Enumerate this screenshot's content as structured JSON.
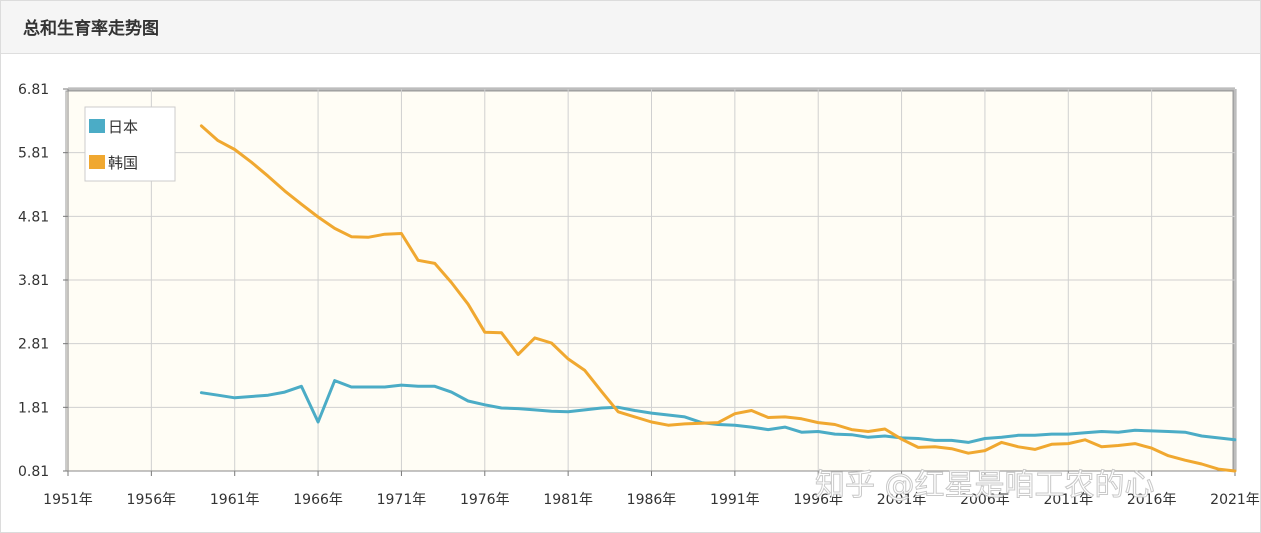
{
  "page": {
    "title": "总和生育率走势图"
  },
  "watermark": "知乎 @红星是咱工农的心",
  "colors": {
    "japan": "#4bacc6",
    "korea": "#f0a830",
    "plot_bg": "#fffdf5",
    "grid": "#d0d0d0"
  },
  "chart_data": {
    "type": "line",
    "title": "总和生育率走势图",
    "xlabel": "",
    "ylabel": "",
    "xlim": [
      1951,
      2021
    ],
    "ylim": [
      0.81,
      6.81
    ],
    "x_ticks": [
      1951,
      1956,
      1961,
      1966,
      1971,
      1976,
      1981,
      1986,
      1991,
      1996,
      2001,
      2006,
      2011,
      2016,
      2021
    ],
    "x_tick_labels": [
      "1951年",
      "1956年",
      "1961年",
      "1966年",
      "1971年",
      "1976年",
      "1981年",
      "1986年",
      "1991年",
      "1996年",
      "2001年",
      "2006年",
      "2011年",
      "2016年",
      "2021年"
    ],
    "y_ticks": [
      0.81,
      1.81,
      2.81,
      3.81,
      4.81,
      5.81,
      6.81
    ],
    "y_tick_labels": [
      "0.81",
      "1.81",
      "2.81",
      "3.81",
      "4.81",
      "5.81",
      "6.81"
    ],
    "grid": true,
    "legend_position": "top-left",
    "series": [
      {
        "name": "日本",
        "color": "#4bacc6",
        "x": [
          1959,
          1960,
          1961,
          1962,
          1963,
          1964,
          1965,
          1966,
          1967,
          1968,
          1969,
          1970,
          1971,
          1972,
          1973,
          1974,
          1975,
          1976,
          1977,
          1978,
          1979,
          1980,
          1981,
          1982,
          1983,
          1984,
          1985,
          1986,
          1987,
          1988,
          1989,
          1990,
          1991,
          1992,
          1993,
          1994,
          1995,
          1996,
          1997,
          1998,
          1999,
          2000,
          2001,
          2002,
          2003,
          2004,
          2005,
          2006,
          2007,
          2008,
          2009,
          2010,
          2011,
          2012,
          2013,
          2014,
          2015,
          2016,
          2017,
          2018,
          2019,
          2020,
          2021
        ],
        "values": [
          2.04,
          2.0,
          1.96,
          1.98,
          2.0,
          2.05,
          2.14,
          1.58,
          2.23,
          2.13,
          2.13,
          2.13,
          2.16,
          2.14,
          2.14,
          2.05,
          1.91,
          1.85,
          1.8,
          1.79,
          1.77,
          1.75,
          1.74,
          1.77,
          1.8,
          1.81,
          1.76,
          1.72,
          1.69,
          1.66,
          1.57,
          1.54,
          1.53,
          1.5,
          1.46,
          1.5,
          1.42,
          1.43,
          1.39,
          1.38,
          1.34,
          1.36,
          1.33,
          1.32,
          1.29,
          1.29,
          1.26,
          1.32,
          1.34,
          1.37,
          1.37,
          1.39,
          1.39,
          1.41,
          1.43,
          1.42,
          1.45,
          1.44,
          1.43,
          1.42,
          1.36,
          1.33,
          1.3
        ]
      },
      {
        "name": "韩国",
        "color": "#f0a830",
        "x": [
          1959,
          1960,
          1961,
          1962,
          1963,
          1964,
          1965,
          1966,
          1967,
          1968,
          1969,
          1970,
          1971,
          1972,
          1973,
          1974,
          1975,
          1976,
          1977,
          1978,
          1979,
          1980,
          1981,
          1982,
          1983,
          1984,
          1985,
          1986,
          1987,
          1988,
          1989,
          1990,
          1991,
          1992,
          1993,
          1994,
          1995,
          1996,
          1997,
          1998,
          1999,
          2000,
          2001,
          2002,
          2003,
          2004,
          2005,
          2006,
          2007,
          2008,
          2009,
          2010,
          2011,
          2012,
          2013,
          2014,
          2015,
          2016,
          2017,
          2018,
          2019,
          2020,
          2021
        ],
        "values": [
          6.23,
          6.0,
          5.86,
          5.66,
          5.44,
          5.21,
          5.0,
          4.8,
          4.62,
          4.49,
          4.48,
          4.53,
          4.54,
          4.12,
          4.07,
          3.77,
          3.43,
          2.99,
          2.98,
          2.64,
          2.9,
          2.82,
          2.57,
          2.39,
          2.06,
          1.74,
          1.66,
          1.58,
          1.53,
          1.55,
          1.56,
          1.57,
          1.71,
          1.76,
          1.65,
          1.66,
          1.63,
          1.57,
          1.54,
          1.46,
          1.43,
          1.47,
          1.31,
          1.18,
          1.19,
          1.16,
          1.09,
          1.13,
          1.26,
          1.19,
          1.15,
          1.23,
          1.24,
          1.3,
          1.19,
          1.21,
          1.24,
          1.17,
          1.05,
          0.98,
          0.92,
          0.84,
          0.81
        ]
      }
    ]
  }
}
